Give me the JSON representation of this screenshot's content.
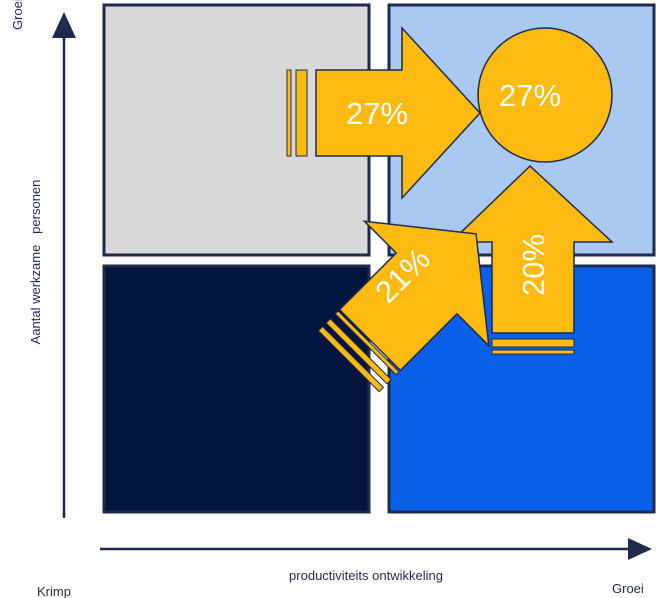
{
  "axes": {
    "y_label": "Aantal werkzame   personen",
    "y_top": "Groei",
    "x_label": "productiviteits ontwikkeling",
    "x_left": "Krimp",
    "x_right": "Groei"
  },
  "quadrants": [
    {
      "position": "top-left",
      "color": "#d9d9d9"
    },
    {
      "position": "top-right",
      "color": "#a9c9f1"
    },
    {
      "position": "bottom-left",
      "color": "#00143d"
    },
    {
      "position": "bottom-right",
      "color": "#0a60e8"
    }
  ],
  "flows": [
    {
      "label": "27%",
      "direction": "right"
    },
    {
      "label": "21%",
      "direction": "up-right"
    },
    {
      "label": "20%",
      "direction": "up"
    }
  ],
  "target": {
    "label": "27%"
  },
  "colors": {
    "arrow": "#fdbb11",
    "arrow_outline": "#1f2b4d",
    "frame": "#1f2b4d",
    "text": "#1f2b4d"
  }
}
